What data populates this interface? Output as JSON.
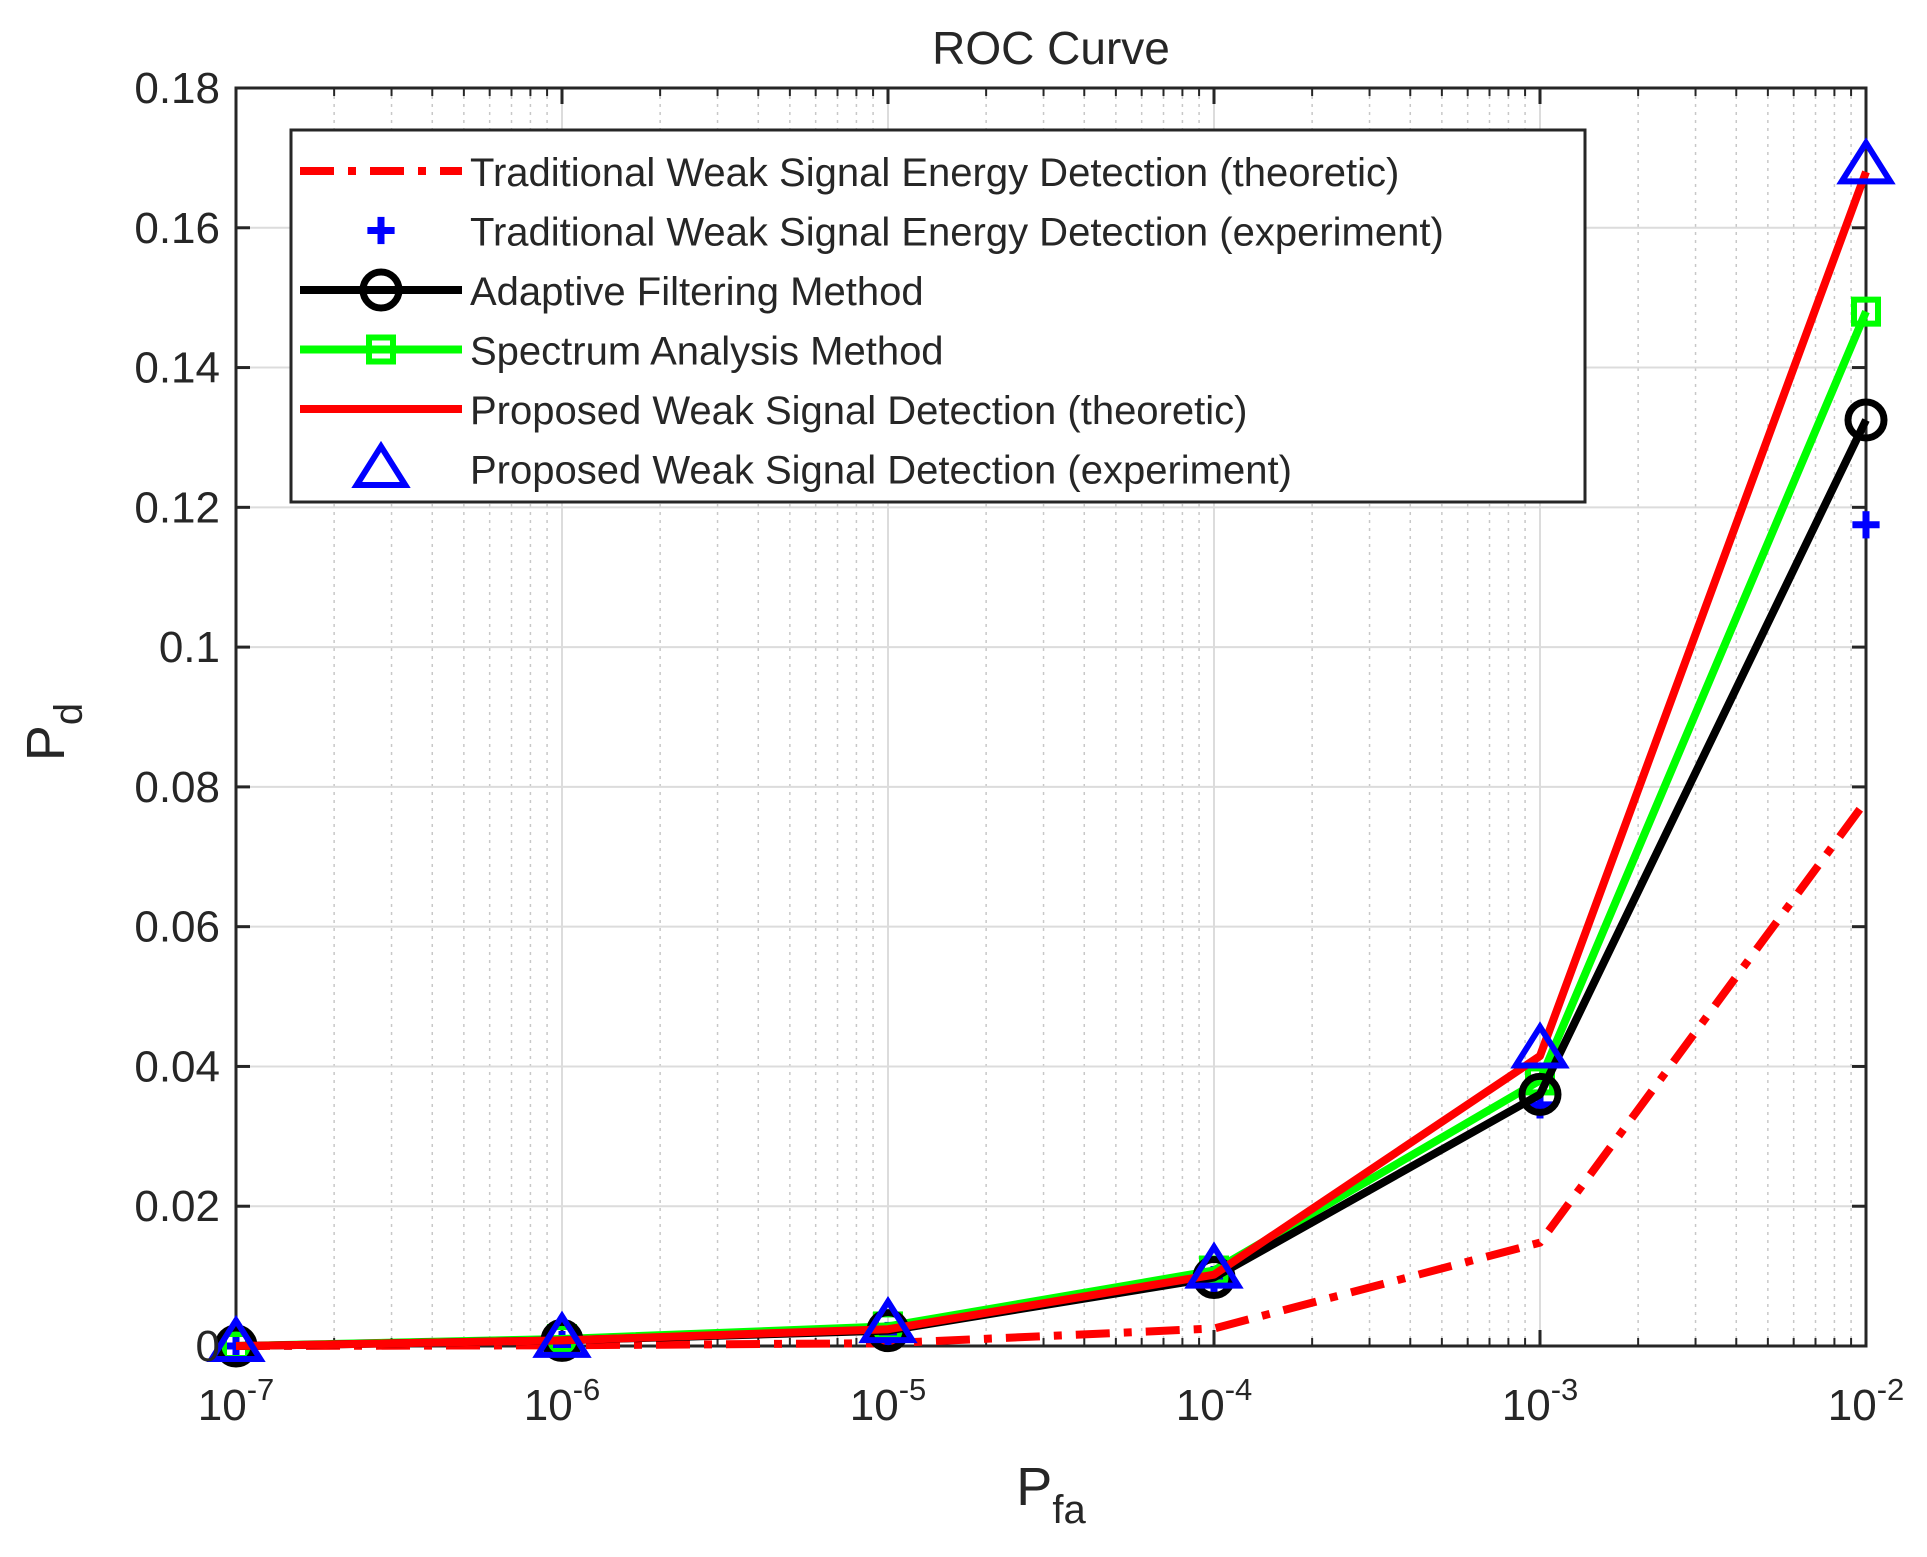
{
  "chart_data": {
    "type": "line",
    "title": "ROC Curve",
    "xlabel": "P",
    "xlabel_sub": "fa",
    "ylabel": "P",
    "ylabel_sub": "d",
    "xscale": "log",
    "x": [
      1e-07,
      1e-06,
      1e-05,
      0.0001,
      0.001,
      0.01
    ],
    "xlim": [
      1e-07,
      0.01
    ],
    "ylim": [
      0,
      0.18
    ],
    "x_ticks": [
      {
        "value": 1e-07,
        "base": "10",
        "exp": "-7"
      },
      {
        "value": 1e-06,
        "base": "10",
        "exp": "-6"
      },
      {
        "value": 1e-05,
        "base": "10",
        "exp": "-5"
      },
      {
        "value": 0.0001,
        "base": "10",
        "exp": "-4"
      },
      {
        "value": 0.001,
        "base": "10",
        "exp": "-3"
      },
      {
        "value": 0.01,
        "base": "10",
        "exp": "-2"
      }
    ],
    "y_ticks": [
      {
        "value": 0,
        "label": "0"
      },
      {
        "value": 0.02,
        "label": "0.02"
      },
      {
        "value": 0.04,
        "label": "0.04"
      },
      {
        "value": 0.06,
        "label": "0.06"
      },
      {
        "value": 0.08,
        "label": "0.08"
      },
      {
        "value": 0.1,
        "label": "0.1"
      },
      {
        "value": 0.12,
        "label": "0.12"
      },
      {
        "value": 0.14,
        "label": "0.14"
      },
      {
        "value": 0.16,
        "label": "0.16"
      },
      {
        "value": 0.18,
        "label": "0.18"
      }
    ],
    "grid": true,
    "legend_position": "top",
    "series": [
      {
        "name": "Traditional Weak Signal Energy Detection (theoretic)",
        "color": "#ff0000",
        "line": "dashdot",
        "marker": "none",
        "values": [
          0.0,
          0.0001,
          0.0004,
          0.0025,
          0.0148,
          0.078
        ]
      },
      {
        "name": "Traditional Weak Signal Energy Detection (experiment)",
        "color": "#0000ff",
        "line": "none",
        "marker": "plus",
        "values": [
          0.0,
          0.0002,
          0.0015,
          0.0095,
          0.0345,
          0.1175
        ]
      },
      {
        "name": "Adaptive Filtering Method",
        "color": "#000000",
        "line": "solid",
        "marker": "circle",
        "values": [
          0.0,
          0.0008,
          0.0022,
          0.0098,
          0.036,
          0.1325
        ]
      },
      {
        "name": "Spectrum Analysis Method",
        "color": "#00ff00",
        "line": "solid",
        "marker": "square",
        "values": [
          0.0,
          0.001,
          0.0028,
          0.0108,
          0.038,
          0.148
        ]
      },
      {
        "name": "Proposed Weak Signal Detection (theoretic)",
        "color": "#ff0000",
        "line": "solid",
        "marker": "none",
        "values": [
          0.0,
          0.0008,
          0.0024,
          0.0102,
          0.0415,
          0.168
        ]
      },
      {
        "name": "Proposed Weak Signal Detection (experiment)",
        "color": "#0000ff",
        "line": "none",
        "marker": "triangle",
        "values": [
          0.0005,
          0.0011,
          0.0032,
          0.011,
          0.0425,
          0.169
        ]
      }
    ]
  }
}
